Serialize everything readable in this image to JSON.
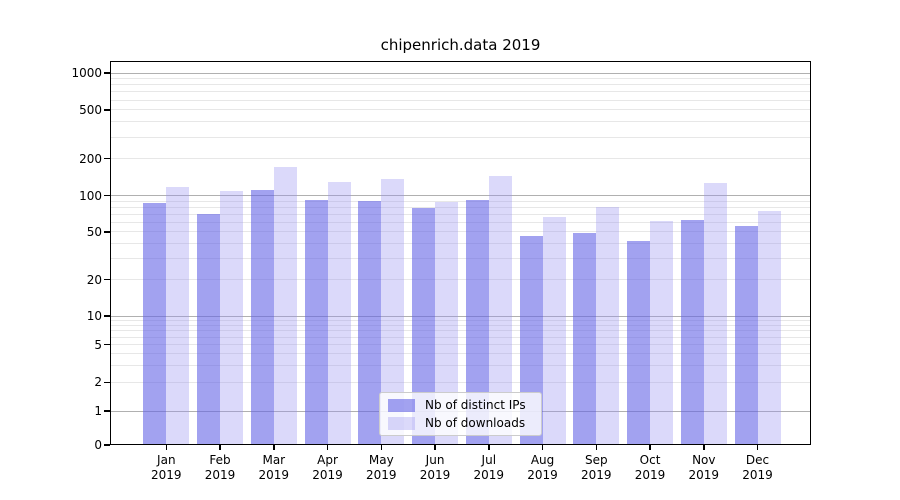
{
  "chart_data": {
    "type": "bar",
    "title": "chipenrich.data 2019",
    "categories": [
      "Jan",
      "Feb",
      "Mar",
      "Apr",
      "May",
      "Jun",
      "Jul",
      "Aug",
      "Sep",
      "Oct",
      "Nov",
      "Dec"
    ],
    "category_year": "2019",
    "series": [
      {
        "name": "Nb of distinct IPs",
        "color": "rgba(100,100,230,0.6)",
        "values": [
          86,
          70,
          110,
          92,
          90,
          79,
          92,
          46,
          49,
          42,
          63,
          56
        ]
      },
      {
        "name": "Nb of downloads",
        "color": "rgba(152,146,240,0.35)",
        "values": [
          118,
          108,
          170,
          128,
          137,
          88,
          144,
          66,
          80,
          62,
          127,
          75
        ]
      }
    ],
    "y_ticks": [
      0,
      1,
      2,
      5,
      10,
      20,
      50,
      100,
      200,
      500,
      1000
    ],
    "yscale": "log-like (0,1 then log decades to 1000)",
    "ylim": [
      0,
      1250
    ],
    "grid": "on",
    "legend_position": "lower center",
    "colors": {
      "major_gridline": "#b0b0b0",
      "minor_gridline": "#e7e7e7",
      "axis": "#000000",
      "background": "#ffffff"
    }
  }
}
